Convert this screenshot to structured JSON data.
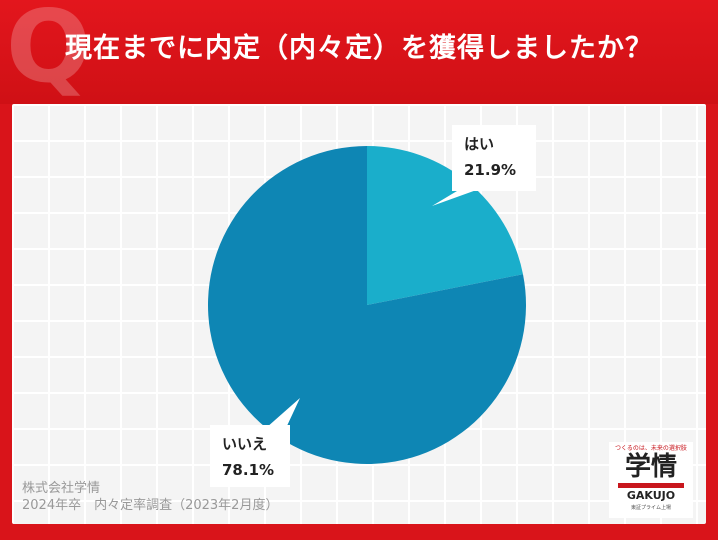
{
  "title": "現在までに内定（内々定）を獲得しましたか？",
  "footer": {
    "company": "株式会社学情",
    "survey": "2024年卒　内々定率調査（2023年2月度）"
  },
  "logo": {
    "tagline": "つくるのは、未来の選択肢",
    "main": "学情",
    "sub": "GAKUJO",
    "note": "東証プライム上場"
  },
  "colors": {
    "header_red": "#d9141a",
    "slice_yes": "#1aaecb",
    "slice_no": "#0e86b4"
  },
  "chart_data": {
    "type": "pie",
    "slices": [
      {
        "label": "はい",
        "value": 21.9,
        "display": "21.9%",
        "color": "#1aaecb"
      },
      {
        "label": "いいえ",
        "value": 78.1,
        "display": "78.1%",
        "color": "#0e86b4"
      }
    ]
  }
}
